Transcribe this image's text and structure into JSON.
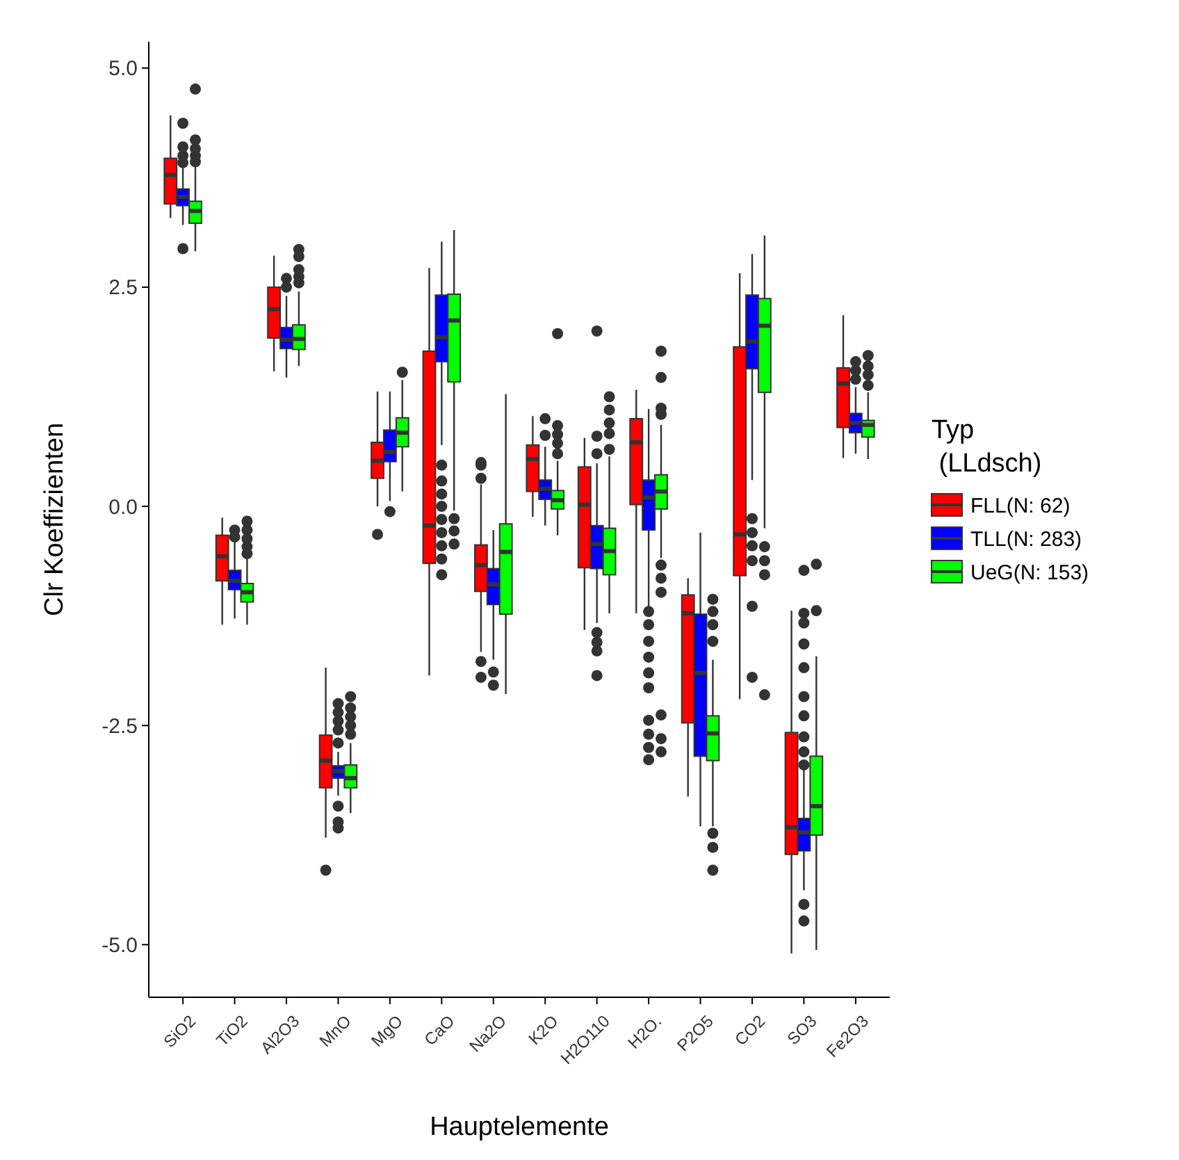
{
  "chart_data": {
    "type": "box",
    "xlabel": "Hauptelemente",
    "ylabel": "Clr Koeffizienten",
    "legend_title": "Typ\n (LLdsch)",
    "legend": "right",
    "grid": false,
    "categories": [
      "SiO2",
      "TiO2",
      "Al2O3",
      "MnO",
      "MgO",
      "CaO",
      "Na2O",
      "K2O",
      "H2O110",
      "H2O.",
      "P2O5",
      "CO2",
      "SO3",
      "Fe2O3"
    ],
    "ylim": [
      -5.6,
      5.3
    ],
    "yticks": [
      {
        "value": -5,
        "label": "-5.0"
      },
      {
        "value": -2.5,
        "label": "-2.5"
      },
      {
        "value": 0,
        "label": "0.0"
      },
      {
        "value": 2.5,
        "label": "2.5"
      },
      {
        "value": 5,
        "label": "5.0"
      }
    ],
    "series": [
      {
        "name": "FLL(N: 62)",
        "color": "#ff0000",
        "boxes": [
          {
            "low": 3.29,
            "q1": 3.45,
            "median": 3.78,
            "q3": 3.97,
            "high": 4.46
          },
          {
            "low": -1.35,
            "q1": -0.85,
            "median": -0.57,
            "q3": -0.33,
            "high": -0.13
          },
          {
            "low": 1.54,
            "q1": 1.92,
            "median": 2.25,
            "q3": 2.5,
            "high": 2.86
          },
          {
            "low": -3.78,
            "q1": -3.21,
            "median": -2.9,
            "q3": -2.61,
            "high": -1.84,
            "outliers": [
              -4.15
            ]
          },
          {
            "low": 0.0,
            "q1": 0.32,
            "median": 0.52,
            "q3": 0.73,
            "high": 1.31,
            "outliers": [
              -0.32
            ]
          },
          {
            "low": -1.93,
            "q1": -0.65,
            "median": -0.22,
            "q3": 1.77,
            "high": 2.72
          },
          {
            "low": -1.66,
            "q1": -0.97,
            "median": -0.67,
            "q3": -0.44,
            "high": 0.25,
            "outliers": [
              0.5,
              0.47,
              0.32,
              -1.77,
              -1.95
            ]
          },
          {
            "low": -0.12,
            "q1": 0.17,
            "median": 0.54,
            "q3": 0.7,
            "high": 1.03
          },
          {
            "low": -1.41,
            "q1": -0.7,
            "median": 0.02,
            "q3": 0.45,
            "high": 0.78
          },
          {
            "low": -1.22,
            "q1": 0.02,
            "median": 0.73,
            "q3": 1.0,
            "high": 1.33
          },
          {
            "low": -3.31,
            "q1": -2.47,
            "median": -1.22,
            "q3": -1.01,
            "high": -0.82
          },
          {
            "low": -2.2,
            "q1": -0.79,
            "median": -0.32,
            "q3": 1.82,
            "high": 2.66
          },
          {
            "low": -5.1,
            "q1": -3.97,
            "median": -3.66,
            "q3": -2.58,
            "high": -1.19
          },
          {
            "low": 0.55,
            "q1": 0.9,
            "median": 1.4,
            "q3": 1.58,
            "high": 2.18
          }
        ]
      },
      {
        "name": "TLL(N: 283)",
        "color": "#0000ff",
        "boxes": [
          {
            "low": 3.21,
            "q1": 3.43,
            "median": 3.53,
            "q3": 3.62,
            "high": 3.86,
            "outliers": [
              4.37,
              4.1,
              4.0,
              3.92,
              2.94
            ]
          },
          {
            "low": -1.28,
            "q1": -0.95,
            "median": -0.85,
            "q3": -0.73,
            "high": -0.38,
            "outliers": [
              -0.27,
              -0.35
            ]
          },
          {
            "low": 1.47,
            "q1": 1.8,
            "median": 1.9,
            "q3": 2.04,
            "high": 2.4,
            "outliers": [
              2.6,
              2.5
            ]
          },
          {
            "low": -3.3,
            "q1": -3.1,
            "median": -3.02,
            "q3": -2.96,
            "high": -2.8,
            "outliers": [
              -2.25,
              -2.35,
              -2.45,
              -2.55,
              -2.7,
              -3.42,
              -3.6,
              -3.67
            ]
          },
          {
            "low": 0.06,
            "q1": 0.51,
            "median": 0.62,
            "q3": 0.87,
            "high": 1.31,
            "outliers": [
              -0.06
            ]
          },
          {
            "low": 0.7,
            "q1": 1.65,
            "median": 1.93,
            "q3": 2.41,
            "high": 3.02,
            "outliers": [
              0.47,
              0.29,
              0.14,
              0.0,
              -0.15,
              -0.3,
              -0.45,
              -0.6,
              -0.78
            ]
          },
          {
            "low": -1.75,
            "q1": -1.12,
            "median": -0.89,
            "q3": -0.71,
            "high": -0.27,
            "outliers": [
              -1.89,
              -2.04
            ]
          },
          {
            "low": -0.22,
            "q1": 0.08,
            "median": 0.2,
            "q3": 0.3,
            "high": 0.68,
            "outliers": [
              1.0,
              0.81
            ]
          },
          {
            "low": -1.33,
            "q1": -0.71,
            "median": -0.43,
            "q3": -0.22,
            "high": 0.49,
            "outliers": [
              2.0,
              0.8,
              0.6,
              -1.44,
              -1.55,
              -1.65,
              -1.93
            ]
          },
          {
            "low": -1.14,
            "q1": -0.27,
            "median": 0.1,
            "q3": 0.3,
            "high": 1.11,
            "outliers": [
              -1.2,
              -1.35,
              -1.54,
              -1.72,
              -1.9,
              -2.07,
              -2.44,
              -2.6,
              -2.75,
              -2.89
            ]
          },
          {
            "low": -3.65,
            "q1": -2.85,
            "median": -1.9,
            "q3": -1.23,
            "high": -0.3
          },
          {
            "low": 0.3,
            "q1": 1.57,
            "median": 1.88,
            "q3": 2.41,
            "high": 2.88,
            "outliers": [
              -0.14,
              -0.3,
              -0.45,
              -0.62,
              -1.14,
              -1.95
            ]
          },
          {
            "low": -4.38,
            "q1": -3.93,
            "median": -3.72,
            "q3": -3.56,
            "high": -3.0,
            "outliers": [
              -0.73,
              -1.22,
              -1.33,
              -1.57,
              -1.84,
              -2.17,
              -2.39,
              -2.63,
              -2.8,
              -2.95,
              -4.54,
              -4.73
            ]
          },
          {
            "low": 0.6,
            "q1": 0.84,
            "median": 0.95,
            "q3": 1.06,
            "high": 1.36,
            "outliers": [
              1.65,
              1.55,
              1.45
            ]
          }
        ]
      },
      {
        "name": "UeG(N: 153)",
        "color": "#00ff00",
        "boxes": [
          {
            "low": 2.91,
            "q1": 3.23,
            "median": 3.37,
            "q3": 3.48,
            "high": 3.89,
            "outliers": [
              4.76,
              4.18,
              4.08,
              4.0,
              3.93
            ]
          },
          {
            "low": -1.35,
            "q1": -1.09,
            "median": -0.98,
            "q3": -0.88,
            "high": -0.57,
            "outliers": [
              -0.17,
              -0.27,
              -0.37,
              -0.46,
              -0.54
            ]
          },
          {
            "low": 1.6,
            "q1": 1.79,
            "median": 1.91,
            "q3": 2.07,
            "high": 2.45,
            "outliers": [
              2.93,
              2.85,
              2.7,
              2.62,
              2.55
            ]
          },
          {
            "low": -3.5,
            "q1": -3.21,
            "median": -3.1,
            "q3": -2.95,
            "high": -2.7,
            "outliers": [
              -2.17,
              -2.3,
              -2.4,
              -2.5,
              -2.6
            ]
          },
          {
            "low": 0.17,
            "q1": 0.68,
            "median": 0.84,
            "q3": 1.01,
            "high": 1.44,
            "outliers": [
              1.53
            ]
          },
          {
            "low": -0.05,
            "q1": 1.42,
            "median": 2.12,
            "q3": 2.42,
            "high": 3.15,
            "outliers": [
              -0.14,
              -0.28,
              -0.43
            ]
          },
          {
            "low": -2.14,
            "q1": -1.23,
            "median": -0.52,
            "q3": -0.2,
            "high": 1.28
          },
          {
            "low": -0.33,
            "q1": -0.03,
            "median": 0.07,
            "q3": 0.18,
            "high": 0.52,
            "outliers": [
              1.97,
              0.92,
              0.82,
              0.72,
              0.6
            ]
          },
          {
            "low": -1.22,
            "q1": -0.78,
            "median": -0.51,
            "q3": -0.25,
            "high": 0.57,
            "outliers": [
              1.25,
              1.1,
              0.95,
              0.83,
              0.65
            ]
          },
          {
            "low": -0.59,
            "q1": -0.03,
            "median": 0.17,
            "q3": 0.36,
            "high": 0.93,
            "outliers": [
              1.77,
              1.47,
              1.12,
              1.05,
              -0.67,
              -0.82,
              -0.98,
              -2.38,
              -2.65,
              -2.8
            ]
          },
          {
            "low": -3.65,
            "q1": -2.9,
            "median": -2.59,
            "q3": -2.39,
            "high": -1.75,
            "outliers": [
              -1.06,
              -1.2,
              -1.35,
              -1.54,
              -3.73,
              -3.89,
              -4.15
            ]
          },
          {
            "low": -0.25,
            "q1": 1.3,
            "median": 2.06,
            "q3": 2.37,
            "high": 3.09,
            "outliers": [
              -0.46,
              -0.62,
              -0.78,
              -2.15
            ]
          },
          {
            "low": -5.06,
            "q1": -3.75,
            "median": -3.42,
            "q3": -2.85,
            "high": -1.71,
            "outliers": [
              -0.66,
              -1.19
            ]
          },
          {
            "low": 0.54,
            "q1": 0.79,
            "median": 0.93,
            "q3": 0.98,
            "high": 1.3,
            "outliers": [
              1.72,
              1.6,
              1.5,
              1.38
            ]
          }
        ]
      }
    ]
  }
}
